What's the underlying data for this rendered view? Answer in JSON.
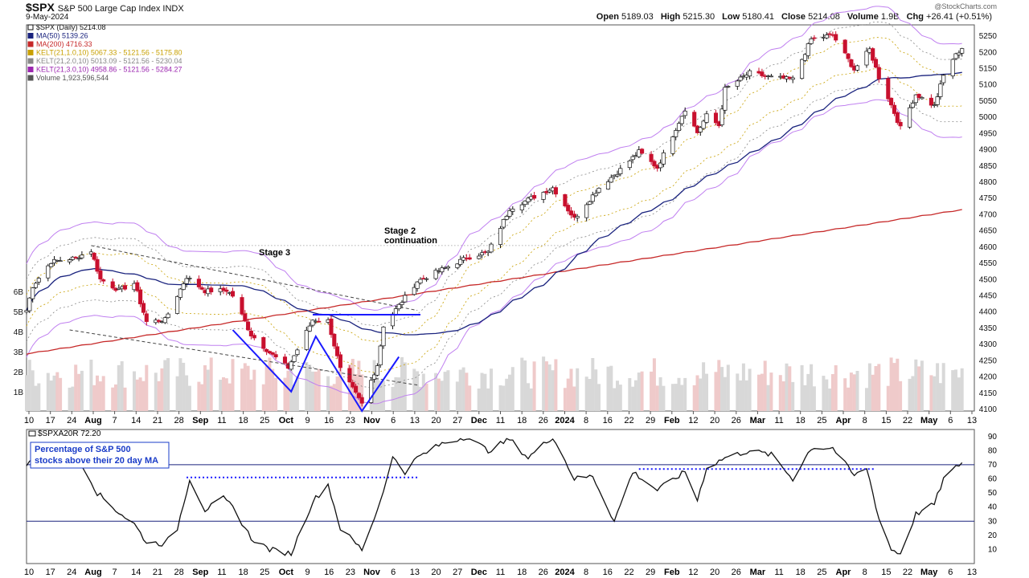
{
  "header": {
    "symbol": "$SPX",
    "name": "S&P 500 Large Cap Index",
    "exchange": "INDX",
    "date": "9-May-2024",
    "brand": "@StockCharts.com",
    "open_label": "Open",
    "open": "5189.03",
    "high_label": "High",
    "high": "5215.30",
    "low_label": "Low",
    "low": "5180.41",
    "close_label": "Close",
    "close": "5214.08",
    "volume_label": "Volume",
    "volume": "1.9B",
    "chg_label": "Chg",
    "chg": "+26.41 (+0.51%)"
  },
  "legend": [
    {
      "text": "$SPX (Daily) 5214.08",
      "color": "#111111",
      "icon": "candle-icon"
    },
    {
      "text": "MA(50) 5139.26",
      "color": "#1a237e",
      "icon": "line-icon"
    },
    {
      "text": "MA(200) 4716.33",
      "color": "#c62828",
      "icon": "line-icon"
    },
    {
      "text": "KELT(21,1.0,10) 5067.33 - 5121.56 - 5175.80",
      "color": "#c8a000",
      "icon": "line-icon"
    },
    {
      "text": "KELT(21,2.0,10) 5013.09 - 5121.56 - 5230.04",
      "color": "#888888",
      "icon": "line-icon"
    },
    {
      "text": "KELT(21,3.0,10) 4958.86 - 5121.56 - 5284.27",
      "color": "#9c27b0",
      "icon": "line-icon"
    },
    {
      "text": "Volume 1,923,596,544",
      "color": "#555555",
      "icon": "bars-icon"
    }
  ],
  "annotations": {
    "stage3": "Stage 3",
    "stage2_line1": "Stage 2",
    "stage2_line2": "continuation"
  },
  "indicator": {
    "header": "$SPXA20R 72.20",
    "box_line1": "Percentage of S&P 500",
    "box_line2": "stocks above their 20 day MA",
    "box_color": "#1a3cc8"
  },
  "x_tick_labels": [
    "10",
    "17",
    "24",
    "Aug",
    "7",
    "14",
    "21",
    "28",
    "Sep",
    "11",
    "18",
    "25",
    "Oct",
    "9",
    "16",
    "23",
    "Nov",
    "6",
    "13",
    "20",
    "27",
    "Dec",
    "11",
    "18",
    "26",
    "2024",
    "8",
    "16",
    "22",
    "29",
    "Feb",
    "12",
    "20",
    "26",
    "Mar",
    "11",
    "18",
    "25",
    "Apr",
    "8",
    "15",
    "22",
    "May",
    "6",
    "13"
  ],
  "x_tick_bold": [
    "Aug",
    "Sep",
    "Oct",
    "Nov",
    "Dec",
    "2024",
    "Feb",
    "Mar",
    "Apr",
    "May"
  ],
  "colors": {
    "up": "#ffffff",
    "down": "#c8102e",
    "ma50": "#1a237e",
    "ma200": "#c62828",
    "kelt1": "#c8a000",
    "kelt2": "#888888",
    "kelt3": "#c080f0",
    "trend": "#1a1aff",
    "volume": "#d8d8d8",
    "volume_down": "#efcaca"
  },
  "chart_data": [
    {
      "type": "candlestick",
      "title": "$SPX S&P 500 Large Cap Index (Daily)",
      "y_ticks": [
        4100,
        4150,
        4200,
        4250,
        4300,
        4350,
        4400,
        4450,
        4500,
        4550,
        4600,
        4650,
        4700,
        4750,
        4800,
        4850,
        4900,
        4950,
        5000,
        5050,
        5100,
        5150,
        5200,
        5250
      ],
      "y_range": [
        4100,
        5270
      ],
      "volume_ticks": [
        "1B",
        "2B",
        "3B",
        "4B",
        "5B",
        "6B"
      ],
      "period_start": "2023-07-10",
      "period_end": "2024-05-09",
      "close_path": [
        {
          "date": "2023-07-10",
          "close": 4405
        },
        {
          "date": "2023-07-12",
          "close": 4480
        },
        {
          "date": "2023-07-18",
          "close": 4555
        },
        {
          "date": "2023-07-26",
          "close": 4567
        },
        {
          "date": "2023-07-31",
          "close": 4589
        },
        {
          "date": "2023-08-03",
          "close": 4501
        },
        {
          "date": "2023-08-09",
          "close": 4467
        },
        {
          "date": "2023-08-14",
          "close": 4489
        },
        {
          "date": "2023-08-18",
          "close": 4370
        },
        {
          "date": "2023-08-24",
          "close": 4376
        },
        {
          "date": "2023-08-31",
          "close": 4508
        },
        {
          "date": "2023-09-06",
          "close": 4465
        },
        {
          "date": "2023-09-13",
          "close": 4467
        },
        {
          "date": "2023-09-15",
          "close": 4450
        },
        {
          "date": "2023-09-21",
          "close": 4330
        },
        {
          "date": "2023-09-27",
          "close": 4275
        },
        {
          "date": "2023-10-03",
          "close": 4229
        },
        {
          "date": "2023-10-11",
          "close": 4376
        },
        {
          "date": "2023-10-16",
          "close": 4373
        },
        {
          "date": "2023-10-20",
          "close": 4224
        },
        {
          "date": "2023-10-27",
          "close": 4117
        },
        {
          "date": "2023-11-01",
          "close": 4237
        },
        {
          "date": "2023-11-03",
          "close": 4358
        },
        {
          "date": "2023-11-14",
          "close": 4495
        },
        {
          "date": "2023-11-30",
          "close": 4567
        },
        {
          "date": "2023-12-07",
          "close": 4585
        },
        {
          "date": "2023-12-14",
          "close": 4719
        },
        {
          "date": "2023-12-28",
          "close": 4783
        },
        {
          "date": "2024-01-04",
          "close": 4688
        },
        {
          "date": "2024-01-12",
          "close": 4783
        },
        {
          "date": "2024-01-19",
          "close": 4839
        },
        {
          "date": "2024-01-25",
          "close": 4894
        },
        {
          "date": "2024-01-31",
          "close": 4845
        },
        {
          "date": "2024-02-09",
          "close": 5026
        },
        {
          "date": "2024-02-13",
          "close": 4953
        },
        {
          "date": "2024-02-16",
          "close": 5005
        },
        {
          "date": "2024-02-20",
          "close": 4975
        },
        {
          "date": "2024-02-22",
          "close": 5087
        },
        {
          "date": "2024-03-01",
          "close": 5137
        },
        {
          "date": "2024-03-08",
          "close": 5123
        },
        {
          "date": "2024-03-15",
          "close": 5117
        },
        {
          "date": "2024-03-21",
          "close": 5241
        },
        {
          "date": "2024-03-28",
          "close": 5254
        },
        {
          "date": "2024-04-04",
          "close": 5147
        },
        {
          "date": "2024-04-09",
          "close": 5209
        },
        {
          "date": "2024-04-12",
          "close": 5123
        },
        {
          "date": "2024-04-15",
          "close": 5061
        },
        {
          "date": "2024-04-19",
          "close": 4967
        },
        {
          "date": "2024-04-24",
          "close": 5071
        },
        {
          "date": "2024-04-30",
          "close": 5035
        },
        {
          "date": "2024-05-03",
          "close": 5128
        },
        {
          "date": "2024-05-06",
          "close": 5180
        },
        {
          "date": "2024-05-09",
          "close": 5214
        }
      ]
    },
    {
      "type": "line",
      "title": "$SPXA20R",
      "y_ticks": [
        10,
        20,
        30,
        40,
        50,
        60,
        70,
        80,
        90
      ],
      "y_range": [
        0,
        95
      ],
      "reference_lines": [
        30,
        70
      ],
      "path": [
        {
          "date": "2023-07-10",
          "value": 70
        },
        {
          "date": "2023-07-20",
          "value": 85
        },
        {
          "date": "2023-07-27",
          "value": 75
        },
        {
          "date": "2023-08-02",
          "value": 50
        },
        {
          "date": "2023-08-08",
          "value": 38
        },
        {
          "date": "2023-08-14",
          "value": 28
        },
        {
          "date": "2023-08-18",
          "value": 15
        },
        {
          "date": "2023-08-24",
          "value": 14
        },
        {
          "date": "2023-08-28",
          "value": 25
        },
        {
          "date": "2023-09-01",
          "value": 60
        },
        {
          "date": "2023-09-06",
          "value": 38
        },
        {
          "date": "2023-09-12",
          "value": 46
        },
        {
          "date": "2023-09-15",
          "value": 40
        },
        {
          "date": "2023-09-21",
          "value": 18
        },
        {
          "date": "2023-09-27",
          "value": 10
        },
        {
          "date": "2023-10-04",
          "value": 7
        },
        {
          "date": "2023-10-11",
          "value": 44
        },
        {
          "date": "2023-10-16",
          "value": 56
        },
        {
          "date": "2023-10-20",
          "value": 25
        },
        {
          "date": "2023-10-27",
          "value": 10
        },
        {
          "date": "2023-11-01",
          "value": 38
        },
        {
          "date": "2023-11-06",
          "value": 75
        },
        {
          "date": "2023-11-10",
          "value": 65
        },
        {
          "date": "2023-11-14",
          "value": 75
        },
        {
          "date": "2023-11-22",
          "value": 85
        },
        {
          "date": "2023-11-30",
          "value": 90
        },
        {
          "date": "2023-12-07",
          "value": 80
        },
        {
          "date": "2023-12-14",
          "value": 88
        },
        {
          "date": "2023-12-20",
          "value": 75
        },
        {
          "date": "2023-12-28",
          "value": 90
        },
        {
          "date": "2024-01-04",
          "value": 60
        },
        {
          "date": "2024-01-10",
          "value": 62
        },
        {
          "date": "2024-01-17",
          "value": 30
        },
        {
          "date": "2024-01-23",
          "value": 65
        },
        {
          "date": "2024-01-31",
          "value": 52
        },
        {
          "date": "2024-02-09",
          "value": 65
        },
        {
          "date": "2024-02-13",
          "value": 45
        },
        {
          "date": "2024-02-16",
          "value": 68
        },
        {
          "date": "2024-02-22",
          "value": 75
        },
        {
          "date": "2024-03-01",
          "value": 80
        },
        {
          "date": "2024-03-08",
          "value": 77
        },
        {
          "date": "2024-03-15",
          "value": 60
        },
        {
          "date": "2024-03-21",
          "value": 82
        },
        {
          "date": "2024-03-28",
          "value": 82
        },
        {
          "date": "2024-04-04",
          "value": 62
        },
        {
          "date": "2024-04-08",
          "value": 68
        },
        {
          "date": "2024-04-12",
          "value": 32
        },
        {
          "date": "2024-04-16",
          "value": 10
        },
        {
          "date": "2024-04-19",
          "value": 7
        },
        {
          "date": "2024-04-24",
          "value": 35
        },
        {
          "date": "2024-04-30",
          "value": 42
        },
        {
          "date": "2024-05-03",
          "value": 60
        },
        {
          "date": "2024-05-09",
          "value": 72
        }
      ]
    }
  ]
}
